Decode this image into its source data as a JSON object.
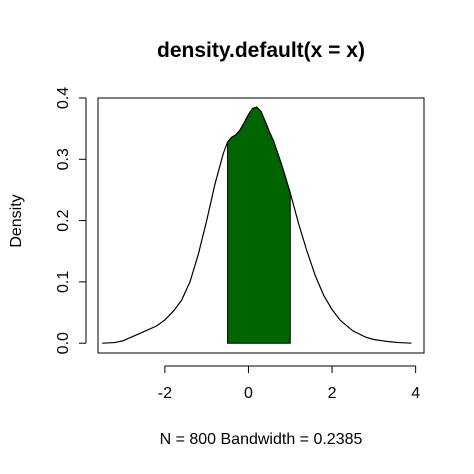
{
  "chart_data": {
    "type": "area",
    "title": "density.default(x = x)",
    "xlabel": "N = 800   Bandwidth = 0.2385",
    "ylabel": "Density",
    "xlim": [
      -3.6,
      4.2
    ],
    "ylim": [
      -0.016,
      0.4
    ],
    "x_ticks": [
      -2,
      0,
      2,
      4
    ],
    "x_tick_labels": [
      "-2",
      "0",
      "2",
      "4"
    ],
    "y_ticks": [
      0.0,
      0.1,
      0.2,
      0.3,
      0.4
    ],
    "y_tick_labels": [
      "0.0",
      "0.1",
      "0.2",
      "0.3",
      "0.4"
    ],
    "grid": false,
    "legend": "none",
    "colors": {
      "line": "#000000",
      "fill": "#006400"
    },
    "series": [
      {
        "x": [
          -3.5,
          -3.2,
          -3.0,
          -2.8,
          -2.5,
          -2.2,
          -2.0,
          -1.8,
          -1.6,
          -1.4,
          -1.2,
          -1.0,
          -0.8,
          -0.6,
          -0.5,
          -0.4,
          -0.3,
          -0.2,
          -0.1,
          0.0,
          0.1,
          0.2,
          0.3,
          0.4,
          0.5,
          0.6,
          0.8,
          1.0,
          1.2,
          1.4,
          1.6,
          1.8,
          2.0,
          2.2,
          2.5,
          2.8,
          3.0,
          3.3,
          3.6,
          3.9
        ],
        "y": [
          0.0,
          0.001,
          0.004,
          0.01,
          0.019,
          0.028,
          0.038,
          0.052,
          0.07,
          0.1,
          0.145,
          0.2,
          0.26,
          0.31,
          0.328,
          0.336,
          0.34,
          0.348,
          0.36,
          0.373,
          0.383,
          0.385,
          0.378,
          0.362,
          0.345,
          0.33,
          0.29,
          0.245,
          0.195,
          0.15,
          0.11,
          0.078,
          0.055,
          0.037,
          0.02,
          0.01,
          0.006,
          0.003,
          0.001,
          0.0
        ]
      }
    ],
    "shaded_region": {
      "x_from": -0.5,
      "x_to": 1.0
    }
  }
}
